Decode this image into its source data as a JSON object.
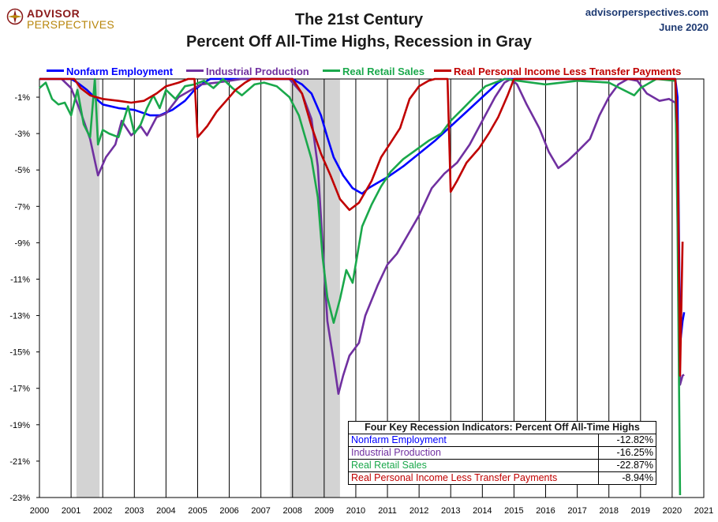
{
  "logo": {
    "word1": "ADVISOR",
    "word2": "PERSPECTIVES"
  },
  "title_line1": "The 21st Century",
  "title_line2": "Percent Off All-Time Highs, Recession in Gray",
  "site": "advisorperspectives.com",
  "date": "June 2020",
  "colors": {
    "employment": "#0000ff",
    "industrial": "#7030a0",
    "retail": "#1aa84b",
    "income": "#c00000",
    "recession": "#d3d3d3"
  },
  "table": {
    "header": "Four Key Recession Indicators: Percent Off All-Time Highs",
    "rows": [
      {
        "label": "Nonfarm Employment",
        "value": "-12.82%",
        "color": "#0000ff"
      },
      {
        "label": "Industrial Production",
        "value": "-16.25%",
        "color": "#7030a0"
      },
      {
        "label": "Real Retail Sales",
        "value": "-22.87%",
        "color": "#1aa84b"
      },
      {
        "label": "Real Personal Income Less Transfer Payments",
        "value": "-8.94%",
        "color": "#c00000"
      }
    ]
  },
  "chart_data": {
    "type": "line",
    "xlim": [
      2000,
      2021
    ],
    "ylim": [
      -23,
      0
    ],
    "y_ticks": [
      -1,
      -3,
      -5,
      -7,
      -9,
      -11,
      -13,
      -15,
      -17,
      -19,
      -21,
      -23
    ],
    "y_tick_labels": [
      "-1%",
      "-3%",
      "-5%",
      "-7%",
      "-9%",
      "-11%",
      "-13%",
      "-15%",
      "-17%",
      "-19%",
      "-21%",
      "-23%"
    ],
    "x_ticks": [
      2000,
      2001,
      2002,
      2003,
      2004,
      2005,
      2006,
      2007,
      2008,
      2009,
      2010,
      2011,
      2012,
      2013,
      2014,
      2015,
      2016,
      2017,
      2018,
      2019,
      2020,
      2021
    ],
    "x_tick_labels": [
      "2000",
      "2001",
      "2002",
      "2003",
      "2004",
      "2005",
      "2006",
      "2007",
      "2008",
      "2009",
      "2010",
      "2011",
      "2012",
      "2013",
      "2014",
      "2015",
      "2016",
      "2017",
      "2018",
      "2019",
      "2020",
      "2021"
    ],
    "recessions": [
      [
        2001.17,
        2001.9
      ],
      [
        2007.92,
        2009.5
      ]
    ],
    "grid": "vertical-year-lines",
    "legend_position": "top",
    "series": [
      {
        "name": "Nonfarm Employment",
        "key": "employment",
        "points": [
          [
            2000.0,
            0
          ],
          [
            2001.0,
            0
          ],
          [
            2001.2,
            -0.2
          ],
          [
            2001.5,
            -0.6
          ],
          [
            2001.8,
            -1.1
          ],
          [
            2002.0,
            -1.4
          ],
          [
            2002.5,
            -1.6
          ],
          [
            2003.0,
            -1.7
          ],
          [
            2003.5,
            -2.0
          ],
          [
            2003.8,
            -2.0
          ],
          [
            2004.2,
            -1.7
          ],
          [
            2004.6,
            -1.2
          ],
          [
            2004.9,
            -0.6
          ],
          [
            2005.2,
            -0.2
          ],
          [
            2005.4,
            0
          ],
          [
            2008.0,
            0
          ],
          [
            2008.3,
            -0.3
          ],
          [
            2008.6,
            -0.8
          ],
          [
            2008.9,
            -2.0
          ],
          [
            2009.1,
            -3.2
          ],
          [
            2009.3,
            -4.3
          ],
          [
            2009.6,
            -5.3
          ],
          [
            2009.9,
            -6.0
          ],
          [
            2010.2,
            -6.3
          ],
          [
            2010.4,
            -6.0
          ],
          [
            2010.7,
            -5.7
          ],
          [
            2011.0,
            -5.4
          ],
          [
            2011.5,
            -4.8
          ],
          [
            2012.0,
            -4.1
          ],
          [
            2012.5,
            -3.4
          ],
          [
            2013.0,
            -2.6
          ],
          [
            2013.5,
            -1.8
          ],
          [
            2014.0,
            -1.0
          ],
          [
            2014.5,
            -0.2
          ],
          [
            2014.7,
            0
          ],
          [
            2020.1,
            0
          ],
          [
            2020.17,
            -1.0
          ],
          [
            2020.25,
            -14.6
          ],
          [
            2020.33,
            -13.3
          ],
          [
            2020.38,
            -12.82
          ]
        ]
      },
      {
        "name": "Industrial Production",
        "key": "industrial",
        "points": [
          [
            2000.0,
            0
          ],
          [
            2000.7,
            0
          ],
          [
            2001.0,
            -0.5
          ],
          [
            2001.3,
            -1.8
          ],
          [
            2001.6,
            -3.3
          ],
          [
            2001.85,
            -5.3
          ],
          [
            2002.1,
            -4.3
          ],
          [
            2002.4,
            -3.6
          ],
          [
            2002.6,
            -2.3
          ],
          [
            2002.9,
            -3.1
          ],
          [
            2003.2,
            -2.6
          ],
          [
            2003.4,
            -3.1
          ],
          [
            2003.7,
            -2.1
          ],
          [
            2004.0,
            -1.9
          ],
          [
            2004.4,
            -1.0
          ],
          [
            2004.8,
            -0.6
          ],
          [
            2005.1,
            -0.3
          ],
          [
            2005.6,
            -0.2
          ],
          [
            2006.0,
            -0.1
          ],
          [
            2006.4,
            0
          ],
          [
            2007.9,
            0
          ],
          [
            2008.3,
            -0.8
          ],
          [
            2008.6,
            -2.2
          ],
          [
            2008.8,
            -4.8
          ],
          [
            2008.95,
            -9.1
          ],
          [
            2009.1,
            -13.3
          ],
          [
            2009.3,
            -15.5
          ],
          [
            2009.45,
            -17.3
          ],
          [
            2009.6,
            -16.3
          ],
          [
            2009.8,
            -15.2
          ],
          [
            2010.1,
            -14.5
          ],
          [
            2010.3,
            -13.0
          ],
          [
            2010.7,
            -11.3
          ],
          [
            2011.0,
            -10.2
          ],
          [
            2011.3,
            -9.6
          ],
          [
            2011.6,
            -8.7
          ],
          [
            2012.0,
            -7.5
          ],
          [
            2012.4,
            -6.0
          ],
          [
            2012.8,
            -5.2
          ],
          [
            2013.2,
            -4.6
          ],
          [
            2013.6,
            -3.6
          ],
          [
            2014.0,
            -2.3
          ],
          [
            2014.4,
            -1.0
          ],
          [
            2014.7,
            -0.2
          ],
          [
            2014.9,
            0
          ],
          [
            2015.1,
            -0.3
          ],
          [
            2015.4,
            -1.4
          ],
          [
            2015.8,
            -2.7
          ],
          [
            2016.1,
            -4.0
          ],
          [
            2016.4,
            -4.9
          ],
          [
            2016.7,
            -4.5
          ],
          [
            2017.0,
            -4.0
          ],
          [
            2017.4,
            -3.3
          ],
          [
            2017.7,
            -2.0
          ],
          [
            2018.0,
            -1.0
          ],
          [
            2018.3,
            -0.3
          ],
          [
            2018.6,
            0
          ],
          [
            2018.9,
            -0.1
          ],
          [
            2019.2,
            -0.8
          ],
          [
            2019.6,
            -1.2
          ],
          [
            2019.9,
            -1.1
          ],
          [
            2020.1,
            -1.3
          ],
          [
            2020.17,
            -4.8
          ],
          [
            2020.25,
            -16.8
          ],
          [
            2020.33,
            -16.3
          ],
          [
            2020.38,
            -16.25
          ]
        ]
      },
      {
        "name": "Real Retail Sales",
        "key": "retail",
        "points": [
          [
            2000.0,
            -0.5
          ],
          [
            2000.2,
            -0.2
          ],
          [
            2000.4,
            -1.1
          ],
          [
            2000.6,
            -1.4
          ],
          [
            2000.8,
            -1.3
          ],
          [
            2001.0,
            -2.0
          ],
          [
            2001.2,
            -0.6
          ],
          [
            2001.4,
            -2.5
          ],
          [
            2001.6,
            -3.2
          ],
          [
            2001.75,
            0
          ],
          [
            2001.85,
            -3.6
          ],
          [
            2002.0,
            -2.8
          ],
          [
            2002.2,
            -3.0
          ],
          [
            2002.5,
            -3.2
          ],
          [
            2002.8,
            -1.5
          ],
          [
            2003.0,
            -3.0
          ],
          [
            2003.2,
            -2.5
          ],
          [
            2003.4,
            -1.6
          ],
          [
            2003.6,
            -0.9
          ],
          [
            2003.8,
            -1.6
          ],
          [
            2004.0,
            -0.6
          ],
          [
            2004.3,
            -1.1
          ],
          [
            2004.6,
            -0.4
          ],
          [
            2004.9,
            -0.3
          ],
          [
            2005.2,
            -0.1
          ],
          [
            2005.5,
            -0.5
          ],
          [
            2005.8,
            0
          ],
          [
            2006.1,
            -0.5
          ],
          [
            2006.4,
            -0.9
          ],
          [
            2006.8,
            -0.3
          ],
          [
            2007.1,
            -0.2
          ],
          [
            2007.5,
            -0.4
          ],
          [
            2007.9,
            -1.0
          ],
          [
            2008.2,
            -2.0
          ],
          [
            2008.4,
            -3.2
          ],
          [
            2008.6,
            -4.4
          ],
          [
            2008.8,
            -6.5
          ],
          [
            2008.95,
            -9.8
          ],
          [
            2009.1,
            -12.0
          ],
          [
            2009.3,
            -13.4
          ],
          [
            2009.5,
            -12.1
          ],
          [
            2009.7,
            -10.5
          ],
          [
            2009.9,
            -11.2
          ],
          [
            2010.2,
            -8.1
          ],
          [
            2010.5,
            -6.9
          ],
          [
            2010.8,
            -5.9
          ],
          [
            2011.1,
            -5.1
          ],
          [
            2011.5,
            -4.4
          ],
          [
            2011.9,
            -3.9
          ],
          [
            2012.3,
            -3.4
          ],
          [
            2012.7,
            -3.0
          ],
          [
            2013.0,
            -2.3
          ],
          [
            2013.4,
            -1.6
          ],
          [
            2013.8,
            -0.9
          ],
          [
            2014.1,
            -0.4
          ],
          [
            2014.4,
            -0.2
          ],
          [
            2014.7,
            0
          ],
          [
            2016.0,
            -0.3
          ],
          [
            2017.0,
            -0.1
          ],
          [
            2018.0,
            -0.2
          ],
          [
            2018.8,
            -0.9
          ],
          [
            2019.0,
            -0.5
          ],
          [
            2019.5,
            0
          ],
          [
            2020.1,
            -0.1
          ],
          [
            2020.17,
            -8.0
          ],
          [
            2020.25,
            -22.87
          ]
        ]
      },
      {
        "name": "Real Personal Income Less Transfer Payments",
        "key": "income",
        "points": [
          [
            2000.0,
            0
          ],
          [
            2001.1,
            0
          ],
          [
            2001.3,
            -0.5
          ],
          [
            2001.6,
            -0.9
          ],
          [
            2002.0,
            -1.1
          ],
          [
            2002.5,
            -1.2
          ],
          [
            2002.9,
            -1.3
          ],
          [
            2003.3,
            -1.2
          ],
          [
            2003.7,
            -0.8
          ],
          [
            2004.0,
            -0.4
          ],
          [
            2004.4,
            -0.2
          ],
          [
            2004.7,
            0
          ],
          [
            2004.9,
            0
          ],
          [
            2005.0,
            -3.2
          ],
          [
            2005.3,
            -2.6
          ],
          [
            2005.6,
            -1.8
          ],
          [
            2005.9,
            -1.2
          ],
          [
            2006.2,
            -0.6
          ],
          [
            2006.5,
            -0.2
          ],
          [
            2006.7,
            0
          ],
          [
            2008.0,
            0
          ],
          [
            2008.3,
            -0.8
          ],
          [
            2008.6,
            -2.6
          ],
          [
            2008.9,
            -4.1
          ],
          [
            2009.2,
            -5.3
          ],
          [
            2009.5,
            -6.6
          ],
          [
            2009.8,
            -7.2
          ],
          [
            2010.1,
            -6.8
          ],
          [
            2010.3,
            -6.2
          ],
          [
            2010.5,
            -5.6
          ],
          [
            2010.8,
            -4.3
          ],
          [
            2011.1,
            -3.5
          ],
          [
            2011.4,
            -2.7
          ],
          [
            2011.7,
            -1.1
          ],
          [
            2012.0,
            -0.4
          ],
          [
            2012.3,
            -0.1
          ],
          [
            2012.5,
            0
          ],
          [
            2012.9,
            0
          ],
          [
            2013.0,
            -6.2
          ],
          [
            2013.2,
            -5.6
          ],
          [
            2013.5,
            -4.6
          ],
          [
            2013.9,
            -3.8
          ],
          [
            2014.2,
            -3.0
          ],
          [
            2014.5,
            -2.1
          ],
          [
            2014.8,
            -0.9
          ],
          [
            2015.0,
            0
          ],
          [
            2020.1,
            0
          ],
          [
            2020.17,
            -3.0
          ],
          [
            2020.25,
            -16.3
          ],
          [
            2020.33,
            -8.94
          ]
        ]
      }
    ]
  }
}
